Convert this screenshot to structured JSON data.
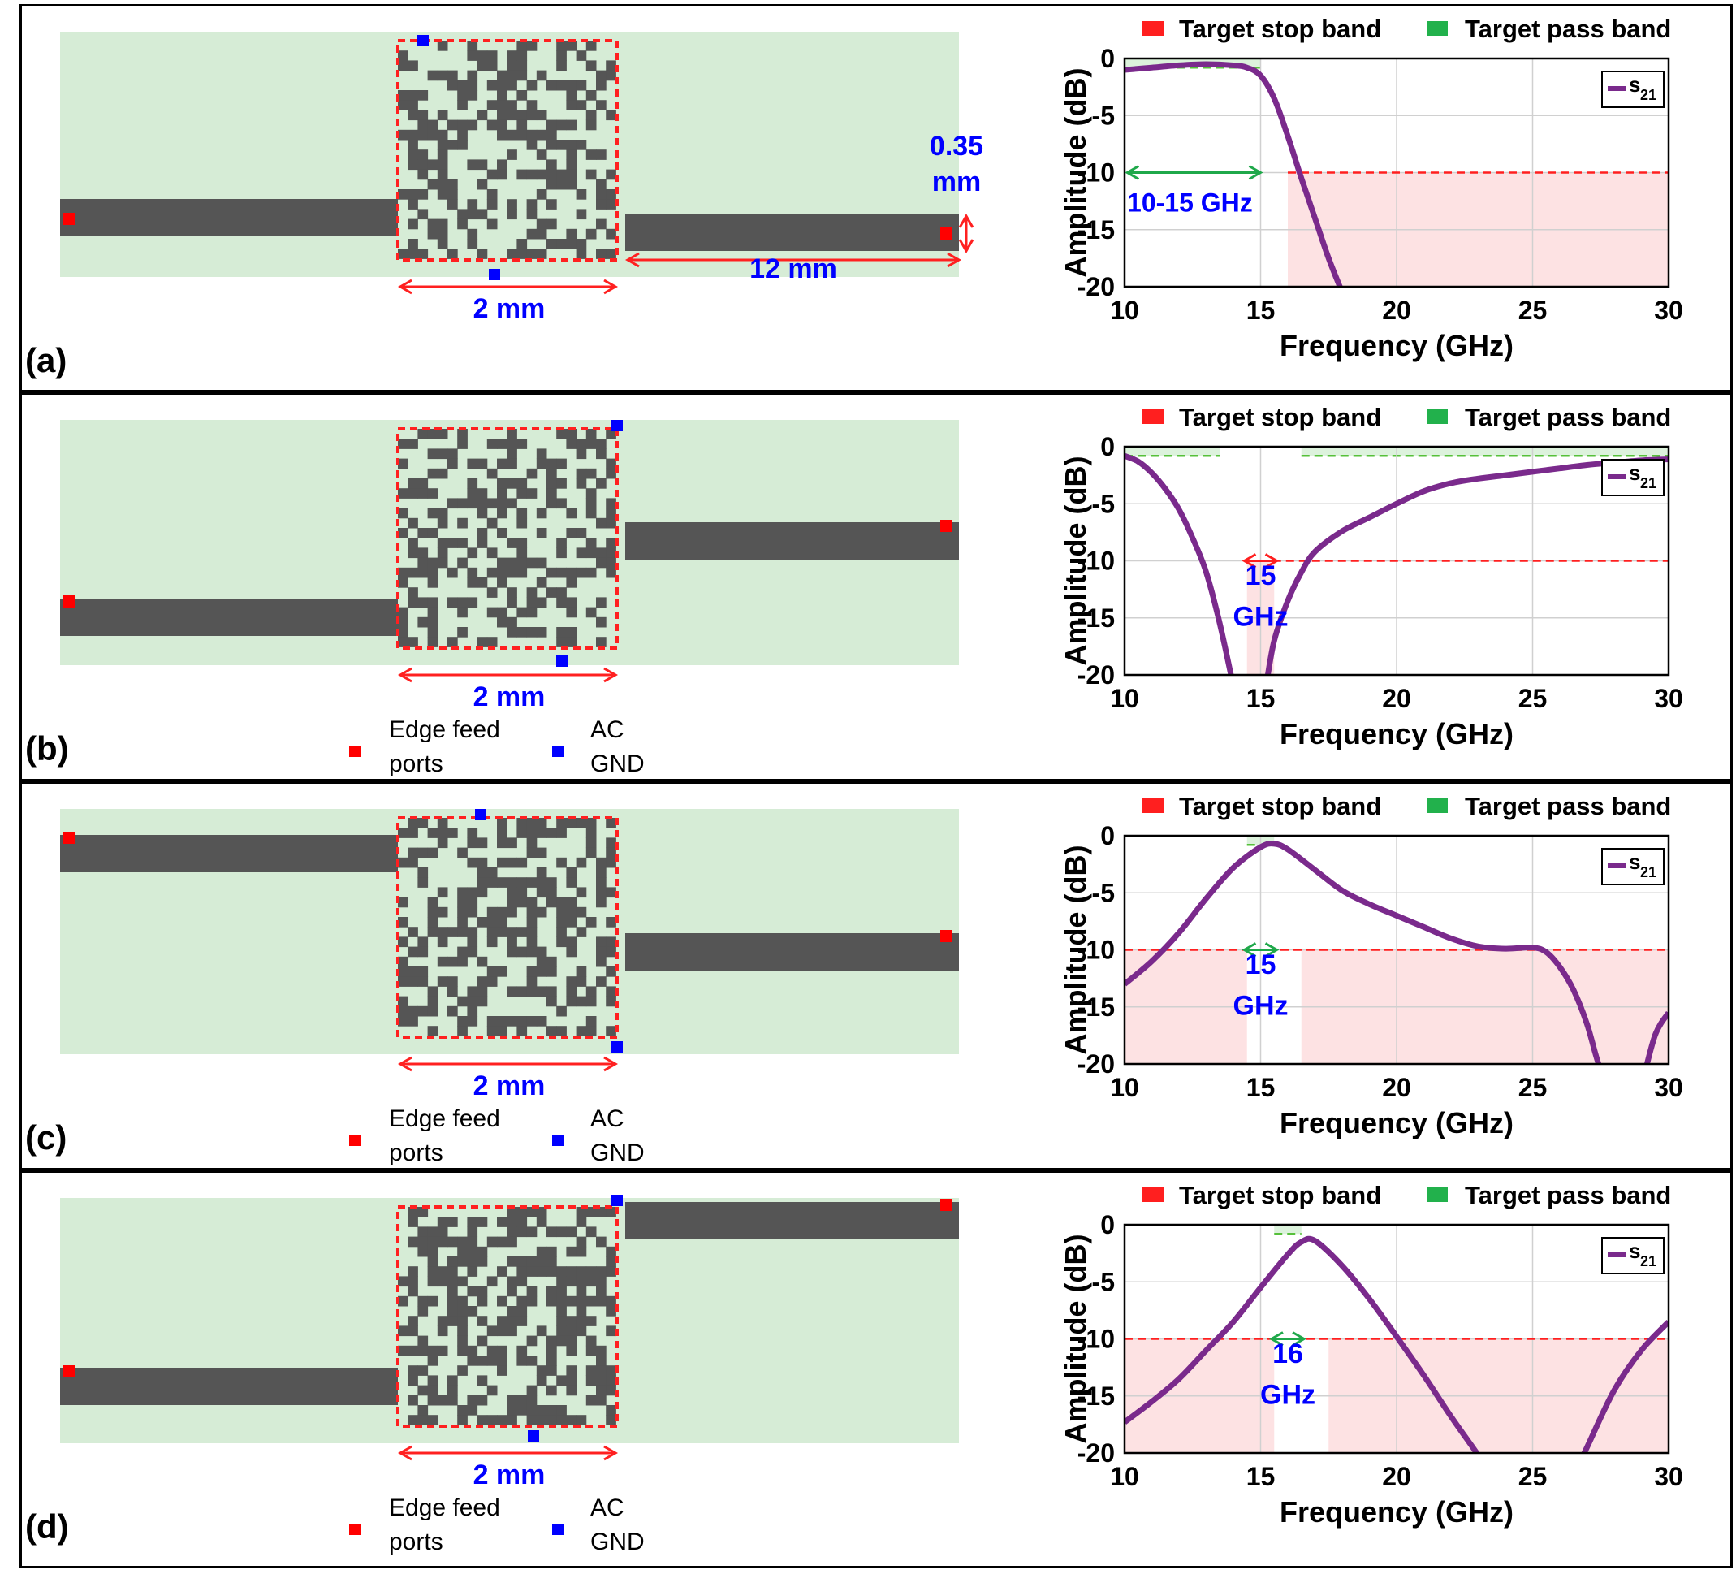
{
  "panels": [
    {
      "label": "(a)",
      "dims": {
        "width": "2 mm",
        "trace_length": "12 mm",
        "trace_width_line1": "0.35",
        "trace_width_line2": "mm"
      },
      "show_port_legend": false,
      "band_note": [
        "10-15 GHz"
      ],
      "chart_data": {
        "type": "line",
        "xlabel": "Frequency (GHz)",
        "ylabel": "Amplitude (dB)",
        "xlim": [
          10,
          30
        ],
        "ylim": [
          -20,
          0
        ],
        "xticks": [
          10,
          15,
          20,
          25,
          30
        ],
        "yticks": [
          0,
          -5,
          -10,
          -15,
          -20
        ],
        "grid": true,
        "legend_top": [
          "Target stop band",
          "Target pass band"
        ],
        "series": [
          {
            "name": "s21",
            "x": [
              10,
              11,
              12,
              13,
              14,
              14.5,
              15,
              15.5,
              16,
              16.5,
              17,
              17.5,
              18
            ],
            "y": [
              -1.0,
              -0.8,
              -0.6,
              -0.5,
              -0.6,
              -0.8,
              -1.5,
              -3.5,
              -6.8,
              -10.5,
              -14,
              -17.5,
              -20.5
            ]
          }
        ],
        "stop_bands": [
          [
            16,
            30
          ]
        ],
        "stop_level": -10,
        "pass_bands": [
          [
            10,
            15
          ]
        ],
        "pass_level": -0.8
      }
    },
    {
      "label": "(b)",
      "dims": {
        "width": "2 mm"
      },
      "show_port_legend": true,
      "band_note": [
        "15",
        "GHz"
      ],
      "chart_data": {
        "type": "line",
        "xlabel": "Frequency (GHz)",
        "ylabel": "Amplitude (dB)",
        "xlim": [
          10,
          30
        ],
        "ylim": [
          -20,
          0
        ],
        "xticks": [
          10,
          15,
          20,
          25,
          30
        ],
        "yticks": [
          0,
          -5,
          -10,
          -15,
          -20
        ],
        "grid": true,
        "legend_top": [
          "Target stop band",
          "Target pass band"
        ],
        "series": [
          {
            "name": "s21",
            "x": [
              10,
              10.5,
              11,
              11.5,
              12,
              12.5,
              13,
              13.5,
              14,
              null,
              15.2,
              15.5,
              16,
              16.5,
              17,
              18,
              19,
              20,
              21,
              22,
              23,
              24,
              25,
              26,
              27,
              28,
              29,
              30
            ],
            "y": [
              -0.8,
              -1.3,
              -2.3,
              -3.7,
              -5.5,
              -8.0,
              -11.0,
              -15.5,
              -21,
              null,
              -21,
              -17,
              -13.5,
              -11,
              -9.2,
              -7.4,
              -6.2,
              -5.0,
              -3.9,
              -3.2,
              -2.8,
              -2.5,
              -2.2,
              -1.9,
              -1.6,
              -1.4,
              -1.2,
              -1.1
            ]
          }
        ],
        "stop_bands": [
          [
            14.5,
            15.5
          ]
        ],
        "stop_level": -10,
        "pass_bands": [
          [
            10,
            13.5
          ],
          [
            16.5,
            30
          ]
        ],
        "pass_level": -0.8
      }
    },
    {
      "label": "(c)",
      "dims": {
        "width": "2 mm"
      },
      "show_port_legend": true,
      "band_note": [
        "15",
        "GHz"
      ],
      "chart_data": {
        "type": "line",
        "xlabel": "Frequency (GHz)",
        "ylabel": "Amplitude (dB)",
        "xlim": [
          10,
          30
        ],
        "ylim": [
          -20,
          0
        ],
        "xticks": [
          10,
          15,
          20,
          25,
          30
        ],
        "yticks": [
          0,
          -5,
          -10,
          -15,
          -20
        ],
        "grid": true,
        "legend_top": [
          "Target stop band",
          "Target pass band"
        ],
        "series": [
          {
            "name": "s21",
            "x": [
              10,
              11,
              12,
              13,
              14,
              15,
              15.5,
              16,
              17,
              18,
              19,
              20,
              21,
              22,
              23,
              24,
              25,
              25.5,
              26,
              26.5,
              27,
              27.5,
              28,
              null,
              29,
              29.5,
              30
            ],
            "y": [
              -13,
              -11,
              -8.5,
              -5.5,
              -2.8,
              -1.0,
              -0.7,
              -1.2,
              -3.0,
              -4.8,
              -6.0,
              -7.0,
              -8.0,
              -9.0,
              -9.7,
              -9.9,
              -9.8,
              -10.2,
              -11.5,
              -13.5,
              -16.5,
              -20.5,
              -22,
              null,
              -22,
              -17.5,
              -15.5
            ]
          }
        ],
        "stop_bands": [
          [
            10,
            14.5
          ],
          [
            16.5,
            30
          ]
        ],
        "stop_level": -10,
        "pass_bands": [
          [
            14.5,
            15.5
          ]
        ],
        "pass_level": -0.8
      }
    },
    {
      "label": "(d)",
      "dims": {
        "width": "2 mm"
      },
      "show_port_legend": true,
      "band_note": [
        "16",
        "GHz"
      ],
      "chart_data": {
        "type": "line",
        "xlabel": "Frequency (GHz)",
        "ylabel": "Amplitude (dB)",
        "xlim": [
          10,
          30
        ],
        "ylim": [
          -20,
          0
        ],
        "xticks": [
          10,
          15,
          20,
          25,
          30
        ],
        "yticks": [
          0,
          -5,
          -10,
          -15,
          -20
        ],
        "grid": true,
        "legend_top": [
          "Target stop band",
          "Target pass band"
        ],
        "series": [
          {
            "name": "s21",
            "x": [
              10,
              11,
              12,
              13,
              14,
              15,
              16,
              16.5,
              17,
              18,
              19,
              20,
              21,
              22,
              23,
              23.3,
              null,
              26.6,
              27,
              28,
              29,
              30
            ],
            "y": [
              -17.3,
              -15.5,
              -13.5,
              -11.0,
              -8.5,
              -5.5,
              -2.6,
              -1.5,
              -1.4,
              -3.6,
              -6.5,
              -9.8,
              -13.2,
              -16.8,
              -20.2,
              -21.5,
              null,
              -21.5,
              -19.5,
              -14.5,
              -11.0,
              -8.5
            ]
          }
        ],
        "stop_bands": [
          [
            10,
            15.5
          ],
          [
            17.5,
            30
          ]
        ],
        "stop_level": -10,
        "pass_bands": [
          [
            15.5,
            16.5
          ]
        ],
        "pass_level": -0.8
      }
    }
  ],
  "port_legend": {
    "feed_line1": "Edge feed",
    "feed_line2": "ports",
    "gnd_line1": "AC",
    "gnd_line2": "GND"
  },
  "colors": {
    "substrate": "#d6ecd6",
    "metal": "#555555",
    "region_outline": "#ff2020",
    "feed_port": "#ff0000",
    "gnd_port": "#0000ff",
    "s21": "#7a2a8c",
    "stop": "#ff1f1f",
    "pass": "#22b14c",
    "annotation": "#0000ff"
  }
}
